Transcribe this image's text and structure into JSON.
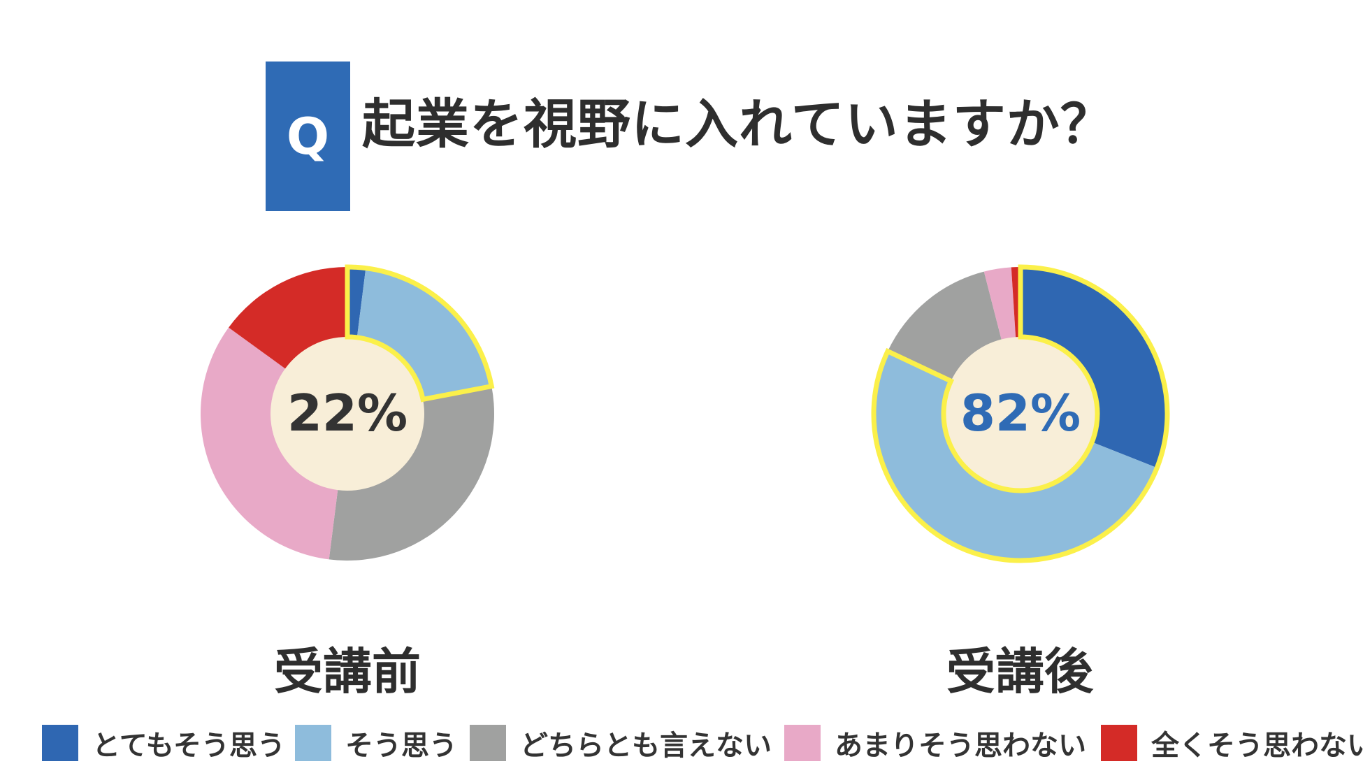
{
  "question": {
    "badge": "Q",
    "text": "起業を視野に入れていますか？",
    "badge_color": "#2f6bb5"
  },
  "highlight_color": "#fbf04a",
  "donut_hole_color": "#f8eed8",
  "chart_data": [
    {
      "type": "pie",
      "label": "受講前",
      "center_text": "22%",
      "center_text_color": "#333333",
      "categories": [
        "とてもそう思う",
        "そう思う",
        "どちらとも言えない",
        "あまりそう思わない",
        "全くそう思わない"
      ],
      "values": [
        2,
        20,
        30,
        33,
        15
      ],
      "highlighted": [
        0,
        1
      ]
    },
    {
      "type": "pie",
      "label": "受講後",
      "center_text": "82%",
      "center_text_color": "#2f6bb5",
      "categories": [
        "とてもそう思う",
        "そう思う",
        "どちらとも言えない",
        "あまりそう思わない",
        "全くそう思わない"
      ],
      "values": [
        31,
        51,
        14,
        3,
        1
      ],
      "highlighted": [
        0,
        1
      ]
    }
  ],
  "legend": [
    {
      "label": "とてもそう思う",
      "color": "#2f67b2"
    },
    {
      "label": "そう思う",
      "color": "#8ebcdc"
    },
    {
      "label": "どちらとも言えない",
      "color": "#a0a1a0"
    },
    {
      "label": "あまりそう思わない",
      "color": "#e8a9c7"
    },
    {
      "label": "全くそう思わない",
      "color": "#d42b27"
    }
  ]
}
